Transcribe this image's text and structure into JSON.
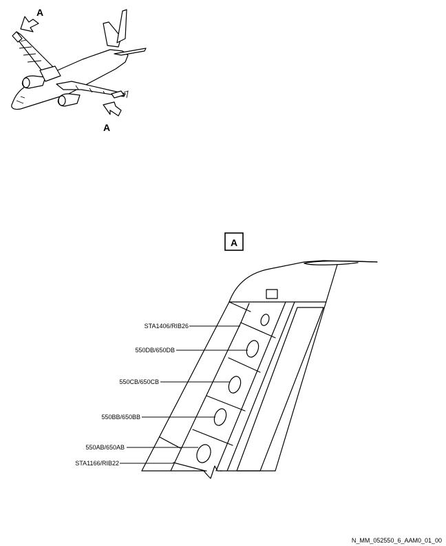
{
  "view_markers": {
    "upper_arrow": "A",
    "lower_arrow": "A",
    "detail_view": "A"
  },
  "labels": {
    "sta1406": "STA1406/RIB26",
    "panel_d": "550DB/650DB",
    "panel_c": "550CB/650CB",
    "panel_b": "550BB/650BB",
    "panel_a": "550AB/650AB",
    "sta1166": "STA1166/RIB22"
  },
  "footer": {
    "reference": "N_MM_052550_6_AAM0_01_00"
  },
  "colors": {
    "line": "#000000",
    "background": "#ffffff"
  }
}
